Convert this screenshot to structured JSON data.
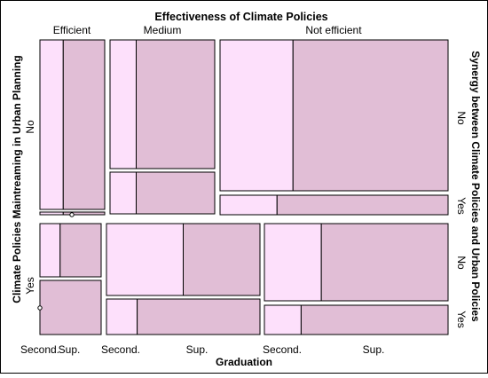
{
  "chart_data": {
    "type": "mosaic",
    "title": "Effectiveness of Climate Policies",
    "xlabel": "Graduation",
    "ylabel_left": "Climate Policies Maintreaming in Urban Planning",
    "ylabel_right": "Synergy between Climate Policies and Urban Policies",
    "effectiveness_levels": [
      "Efficient",
      "Medium",
      "Not efficient"
    ],
    "graduation_levels": [
      "Second.",
      "Sup."
    ],
    "graduation_tick_labels": [
      "Second.",
      "Sup.",
      "Second.",
      "Sup.",
      "Second.",
      "Sup."
    ],
    "maintreaming_levels": [
      "No",
      "Yes"
    ],
    "synergy_levels": [
      "No",
      "Yes"
    ],
    "colors": {
      "light": "#fde0fb",
      "dark": "#e1bed6",
      "border": "#000000",
      "frame": "#000000"
    },
    "cells": [
      {
        "maintreaming": "No",
        "effectiveness": "Efficient",
        "synergy": "No",
        "secondary": 0.36,
        "superior": 0.64
      },
      {
        "maintreaming": "No",
        "effectiveness": "Efficient",
        "synergy": "Yes",
        "secondary": 0.36,
        "superior": 0.64
      },
      {
        "maintreaming": "No",
        "effectiveness": "Medium",
        "synergy": "No",
        "secondary": 0.25,
        "superior": 0.75
      },
      {
        "maintreaming": "No",
        "effectiveness": "Medium",
        "synergy": "Yes",
        "secondary": 0.25,
        "superior": 0.75
      },
      {
        "maintreaming": "No",
        "effectiveness": "Not efficient",
        "synergy": "No",
        "secondary": 0.32,
        "superior": 0.68
      },
      {
        "maintreaming": "No",
        "effectiveness": "Not efficient",
        "synergy": "Yes",
        "secondary": 0.25,
        "superior": 0.75
      },
      {
        "maintreaming": "Yes",
        "effectiveness": "Efficient",
        "synergy": "No",
        "secondary": 0.33,
        "superior": 0.67
      },
      {
        "maintreaming": "Yes",
        "effectiveness": "Efficient",
        "synergy": "Yes",
        "secondary": 0.0,
        "superior": 1.0
      },
      {
        "maintreaming": "Yes",
        "effectiveness": "Medium",
        "synergy": "No",
        "secondary": 0.5,
        "superior": 0.5
      },
      {
        "maintreaming": "Yes",
        "effectiveness": "Medium",
        "synergy": "Yes",
        "secondary": 0.2,
        "superior": 0.8
      },
      {
        "maintreaming": "Yes",
        "effectiveness": "Not efficient",
        "synergy": "No",
        "secondary": 0.31,
        "superior": 0.69
      },
      {
        "maintreaming": "Yes",
        "effectiveness": "Not efficient",
        "synergy": "Yes",
        "secondary": 0.2,
        "superior": 0.8
      }
    ]
  }
}
